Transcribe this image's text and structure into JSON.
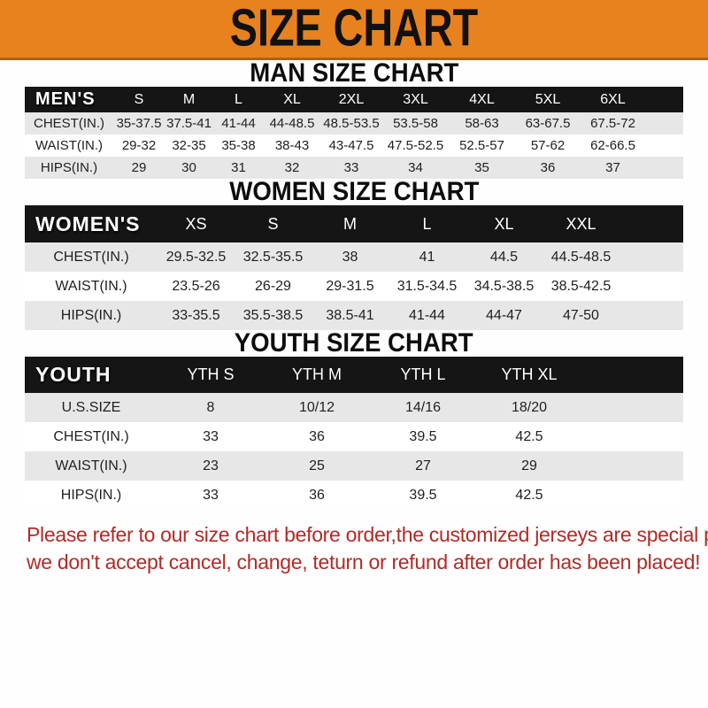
{
  "banner": {
    "title": "SIZE CHART"
  },
  "men": {
    "heading": "MAN SIZE CHART",
    "header_label": "MEN'S",
    "columns": [
      "S",
      "M",
      "L",
      "XL",
      "2XL",
      "3XL",
      "4XL",
      "5XL",
      "6XL"
    ],
    "rows": [
      {
        "label": "CHEST(IN.)",
        "values": [
          "35-37.5",
          "37.5-41",
          "41-44",
          "44-48.5",
          "48.5-53.5",
          "53.5-58",
          "58-63",
          "63-67.5",
          "67.5-72"
        ]
      },
      {
        "label": "WAIST(IN.)",
        "values": [
          "29-32",
          "32-35",
          "35-38",
          "38-43",
          "43-47.5",
          "47.5-52.5",
          "52.5-57",
          "57-62",
          "62-66.5"
        ]
      },
      {
        "label": "HIPS(IN.)",
        "values": [
          "29",
          "30",
          "31",
          "32",
          "33",
          "34",
          "35",
          "36",
          "37"
        ]
      }
    ]
  },
  "women": {
    "heading": "WOMEN SIZE CHART",
    "header_label": "WOMEN'S",
    "columns": [
      "XS",
      "S",
      "M",
      "L",
      "XL",
      "XXL"
    ],
    "rows": [
      {
        "label": "CHEST(IN.)",
        "values": [
          "29.5-32.5",
          "32.5-35.5",
          "38",
          "41",
          "44.5",
          "44.5-48.5"
        ]
      },
      {
        "label": "WAIST(IN.)",
        "values": [
          "23.5-26",
          "26-29",
          "29-31.5",
          "31.5-34.5",
          "34.5-38.5",
          "38.5-42.5"
        ]
      },
      {
        "label": "HIPS(IN.)",
        "values": [
          "33-35.5",
          "35.5-38.5",
          "38.5-41",
          "41-44",
          "44-47",
          "47-50"
        ]
      }
    ]
  },
  "youth": {
    "heading": "YOUTH SIZE CHART",
    "header_label": "YOUTH",
    "columns": [
      "YTH S",
      "YTH M",
      "YTH L",
      "YTH XL"
    ],
    "rows": [
      {
        "label": "U.S.SIZE",
        "values": [
          "8",
          "10/12",
          "14/16",
          "18/20"
        ]
      },
      {
        "label": "CHEST(IN.)",
        "values": [
          "33",
          "36",
          "39.5",
          "42.5"
        ]
      },
      {
        "label": "WAIST(IN.)",
        "values": [
          "23",
          "25",
          "27",
          "29"
        ]
      },
      {
        "label": "HIPS(IN.)",
        "values": [
          "33",
          "36",
          "39.5",
          "42.5"
        ]
      }
    ]
  },
  "footer": {
    "line1": "Please refer to our size chart before order,the customized jerseys are special products,",
    "line2": "we don't accept cancel, change, teturn or refund after order has been placed!"
  },
  "colors": {
    "banner_bg": "#E8821E",
    "banner_edge": "#A8641A",
    "header_bar_bg": "#151515",
    "row_stripe_gray": "#e7e7e7",
    "footer_text_red": "#B22A25"
  }
}
